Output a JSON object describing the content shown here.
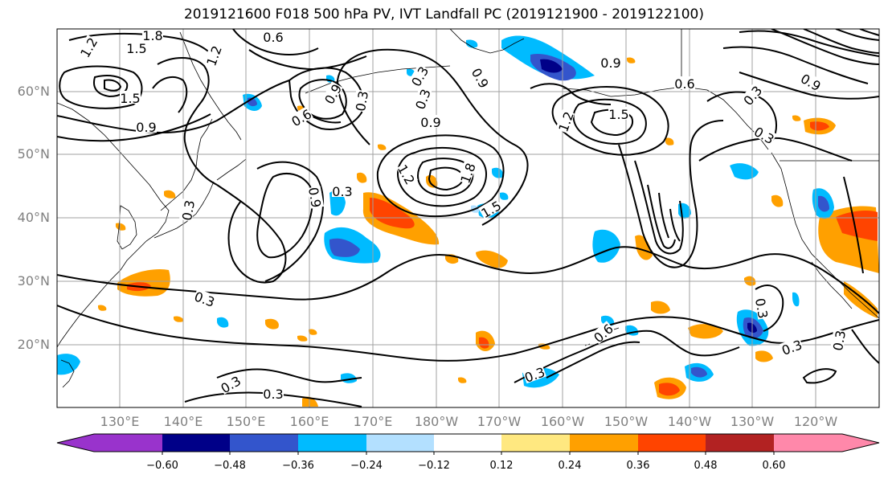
{
  "title": "2019121600 F018 500 hPa PV, IVT Landfall PC (2019121900 - 2019122100)",
  "lat_labels": [
    "60°N",
    "50°N",
    "40°N",
    "30°N",
    "20°N"
  ],
  "lon_labels": [
    "130°E",
    "140°E",
    "150°E",
    "160°E",
    "170°E",
    "180°W",
    "170°W",
    "160°W",
    "150°W",
    "140°W",
    "130°W",
    "120°W"
  ],
  "contour_labels": [
    "1.2",
    "1.8",
    "1.5",
    "0.6",
    "1.2",
    "1.5",
    "0.9",
    "0.3",
    "0.9",
    "0.6",
    "0.3",
    "0.9",
    "1.2",
    "1.8",
    "0.9",
    "0.3",
    "0.3",
    "0.3",
    "1.5",
    "0.9",
    "0.6",
    "1.5",
    "1.2",
    "0.9",
    "0.3",
    "0.3",
    "0.3",
    "0.3",
    "0.6",
    "0.3",
    "0.3",
    "0.3",
    "0.3",
    "0.3",
    "0.9"
  ],
  "colorbar": {
    "ticks": [
      "−0.60",
      "−0.48",
      "−0.36",
      "−0.24",
      "−0.12",
      "0.12",
      "0.24",
      "0.36",
      "0.48",
      "0.60"
    ],
    "colors": [
      "#9933cc",
      "#000088",
      "#3355cc",
      "#00bbff",
      "#b3e0ff",
      "#ffffff",
      "#ffe880",
      "#ffa000",
      "#ff4400",
      "#b22222",
      "#ff88aa"
    ],
    "under_color": "#9933cc",
    "over_color": "#ff88aa"
  },
  "gridlines": true
}
